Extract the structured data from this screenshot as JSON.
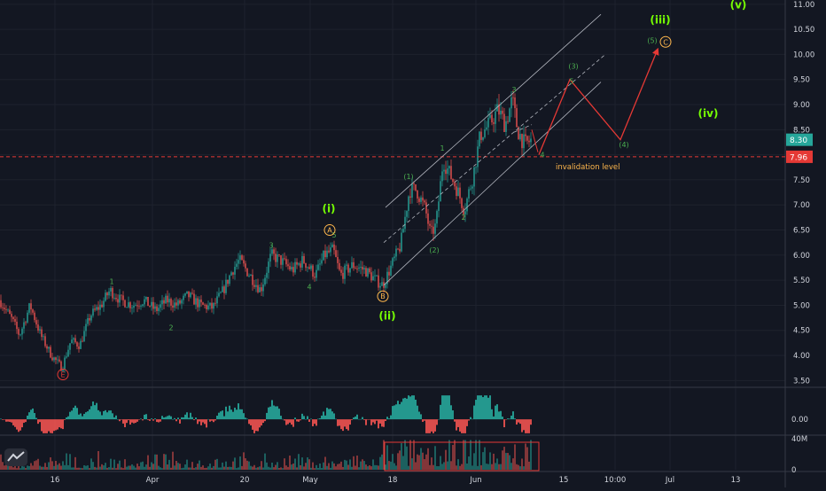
{
  "chart_data": [
    {
      "type": "candlestick",
      "title": "",
      "xlabel": "",
      "ylabel": "",
      "ylim": [
        3.4,
        11.05
      ],
      "y_ticks": [
        3.5,
        4.0,
        4.5,
        5.0,
        5.5,
        6.0,
        6.5,
        7.0,
        7.5,
        8.0,
        8.5,
        9.0,
        9.5,
        10.0,
        10.5,
        11.0
      ],
      "y_tick_labels": [
        "3.50",
        "4.00",
        "4.50",
        "5.00",
        "5.50",
        "6.00",
        "6.50",
        "7.00",
        "7.50",
        "8.00",
        "8.50",
        "9.00",
        "9.50",
        "10.00",
        "10.50",
        "11.00"
      ],
      "x_ticks": [
        "16",
        "Apr",
        "20",
        "May",
        "18",
        "Jun",
        "15",
        "10:00",
        "Jul",
        "13"
      ],
      "price_anchors": [
        [
          0,
          5.1
        ],
        [
          14,
          4.7
        ],
        [
          22,
          4.4
        ],
        [
          34,
          5.0
        ],
        [
          46,
          4.4
        ],
        [
          58,
          4.0
        ],
        [
          70,
          3.75
        ],
        [
          80,
          4.3
        ],
        [
          90,
          4.2
        ],
        [
          102,
          4.8
        ],
        [
          114,
          5.0
        ],
        [
          124,
          5.3
        ],
        [
          136,
          5.1
        ],
        [
          150,
          5.0
        ],
        [
          162,
          5.1
        ],
        [
          176,
          4.9
        ],
        [
          188,
          5.1
        ],
        [
          200,
          5.0
        ],
        [
          212,
          5.2
        ],
        [
          226,
          5.0
        ],
        [
          240,
          4.95
        ],
        [
          252,
          5.3
        ],
        [
          262,
          5.7
        ],
        [
          270,
          5.9
        ],
        [
          282,
          5.6
        ],
        [
          294,
          5.3
        ],
        [
          306,
          6.0
        ],
        [
          316,
          5.9
        ],
        [
          330,
          5.7
        ],
        [
          342,
          5.9
        ],
        [
          356,
          5.6
        ],
        [
          366,
          6.0
        ],
        [
          376,
          6.1
        ],
        [
          384,
          5.6
        ],
        [
          398,
          5.8
        ],
        [
          412,
          5.7
        ],
        [
          424,
          5.5
        ],
        [
          432,
          5.4
        ],
        [
          442,
          5.8
        ],
        [
          452,
          6.2
        ],
        [
          462,
          7.3
        ],
        [
          470,
          7.3
        ],
        [
          480,
          6.9
        ],
        [
          486,
          6.4
        ],
        [
          492,
          6.6
        ],
        [
          500,
          7.9
        ],
        [
          508,
          7.6
        ],
        [
          516,
          7.3
        ],
        [
          524,
          6.9
        ],
        [
          534,
          7.6
        ],
        [
          542,
          8.4
        ],
        [
          552,
          8.6
        ],
        [
          562,
          8.9
        ],
        [
          570,
          8.6
        ],
        [
          578,
          9.1
        ],
        [
          584,
          8.5
        ],
        [
          592,
          8.2
        ],
        [
          600,
          8.3
        ]
      ],
      "last_price": 8.3,
      "last_price_label": "8.30",
      "invalidation_price": 7.96,
      "invalidation_price_label": "7.96",
      "invalidation_text": "invalidation level",
      "channel_lines": [
        {
          "style": "solid",
          "from": [
            435,
            6.95
          ],
          "to": [
            678,
            10.8
          ]
        },
        {
          "style": "solid",
          "from": [
            433,
            5.4
          ],
          "to": [
            678,
            9.45
          ]
        },
        {
          "style": "dashed",
          "from": [
            433,
            6.25
          ],
          "to": [
            683,
            10.0
          ]
        },
        {
          "style": "dashed",
          "from": [
            580,
            8.45
          ],
          "to": [
            600,
            8.6
          ]
        }
      ],
      "projection_path": [
        [
          608,
          8.0
        ],
        [
          643,
          9.5
        ],
        [
          700,
          8.3
        ],
        [
          742,
          10.1
        ]
      ],
      "wave_labels": [
        {
          "text": "1",
          "x": 126,
          "y": 5.42,
          "color": "#4caf50",
          "size": 8
        },
        {
          "text": "2",
          "x": 193,
          "y": 4.5,
          "color": "#4caf50",
          "size": 8
        },
        {
          "text": "3",
          "x": 306,
          "y": 6.15,
          "color": "#4caf50",
          "size": 8
        },
        {
          "text": "4",
          "x": 349,
          "y": 5.32,
          "color": "#4caf50",
          "size": 8
        },
        {
          "text": "5",
          "x": 377,
          "y": 6.35,
          "color": "#4caf50",
          "size": 8
        },
        {
          "text": "(i)",
          "x": 371,
          "y": 6.85,
          "color": "#76ff03",
          "size": 12,
          "bold": true
        },
        {
          "text": "(ii)",
          "x": 437,
          "y": 4.72,
          "color": "#76ff03",
          "size": 12,
          "bold": true
        },
        {
          "text": "(1)",
          "x": 461,
          "y": 7.52,
          "color": "#4caf50",
          "size": 8
        },
        {
          "text": "(2)",
          "x": 490,
          "y": 6.05,
          "color": "#4caf50",
          "size": 8
        },
        {
          "text": "1",
          "x": 499,
          "y": 8.08,
          "color": "#4caf50",
          "size": 8
        },
        {
          "text": "2",
          "x": 523,
          "y": 6.7,
          "color": "#4caf50",
          "size": 8
        },
        {
          "text": "3",
          "x": 580,
          "y": 9.25,
          "color": "#4caf50",
          "size": 8
        },
        {
          "text": "4",
          "x": 612,
          "y": 7.95,
          "color": "#4caf50",
          "size": 8
        },
        {
          "text": "(3)",
          "x": 647,
          "y": 9.72,
          "color": "#4caf50",
          "size": 8
        },
        {
          "text": "5",
          "x": 645,
          "y": 9.42,
          "color": "#4caf50",
          "size": 8
        },
        {
          "text": "(4)",
          "x": 704,
          "y": 8.15,
          "color": "#4caf50",
          "size": 8
        },
        {
          "text": "(5)",
          "x": 736,
          "y": 10.23,
          "color": "#4caf50",
          "size": 8
        },
        {
          "text": "(iii)",
          "x": 745,
          "y": 10.62,
          "color": "#76ff03",
          "size": 12,
          "bold": true
        },
        {
          "text": "(iv)",
          "x": 799,
          "y": 8.75,
          "color": "#76ff03",
          "size": 12,
          "bold": true
        },
        {
          "text": "(v)",
          "x": 833,
          "y": 10.92,
          "color": "#76ff03",
          "size": 12,
          "bold": true
        }
      ],
      "circle_labels": [
        {
          "text": "E",
          "x": 71,
          "y": 3.62,
          "color": "#e53935"
        },
        {
          "text": "A",
          "x": 372,
          "y": 6.5,
          "color": "#ffb74d"
        },
        {
          "text": "B",
          "x": 432,
          "y": 5.18,
          "color": "#ffb74d"
        },
        {
          "text": "C",
          "x": 751,
          "y": 10.25,
          "color": "#ffb74d"
        }
      ],
      "colors": {
        "background": "#131722",
        "grid": "#1e222d",
        "up": "#26a69a",
        "down": "#ef5350",
        "channel": "#b2b5be",
        "projection": "#e53935",
        "invalidation": "#e53935",
        "invalidation_text": "#ffb74d",
        "axis_text": "#d1d4dc",
        "last_price_bg": "#26a69a"
      }
    },
    {
      "type": "histogram",
      "title": "",
      "ylim": [
        -0.3,
        0.5
      ],
      "y_ticks": [
        0.0
      ],
      "y_tick_labels": [
        "0.00"
      ],
      "colors": {
        "positive": "#26a69a",
        "negative": "#ef5350"
      }
    },
    {
      "type": "bar",
      "title": "",
      "ylim": [
        0,
        42
      ],
      "y_ticks": [
        0,
        40
      ],
      "y_tick_labels": [
        "0",
        "40M"
      ],
      "highlight_box": {
        "from_x": 434,
        "to_x": 608,
        "color": "#e53935"
      },
      "colors": {
        "up": "#26a69a",
        "down": "#ef5350"
      }
    }
  ]
}
